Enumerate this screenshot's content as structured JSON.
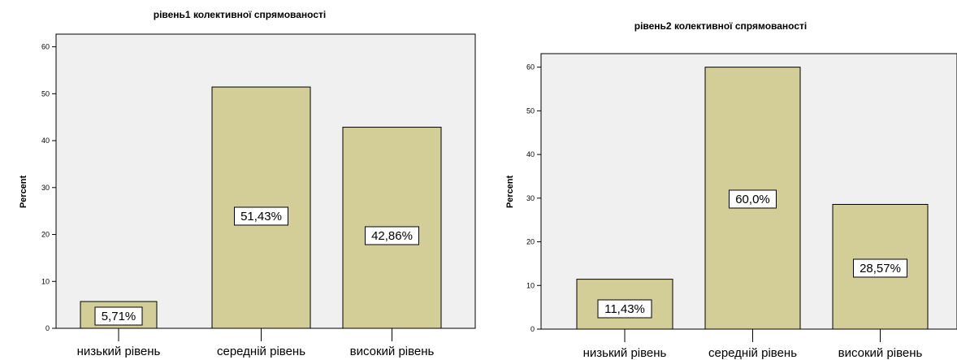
{
  "colors": {
    "plot_bg": "#f0f0f0",
    "bar_fill": "#d3ce98",
    "border": "#000000",
    "label_bg": "#ffffff"
  },
  "chart_data": [
    {
      "type": "bar",
      "title": "рівень1 колективної спрямованості",
      "ylabel": "Percent",
      "categories": [
        "низький рівень",
        "середній рівень",
        "високий рівень"
      ],
      "values": [
        5.71,
        51.43,
        42.86
      ],
      "data_labels": [
        "5,71%",
        "51,43%",
        "42,86%"
      ],
      "yticks": [
        0,
        10,
        20,
        30,
        40,
        50,
        60
      ],
      "ylim": [
        0,
        62.7
      ],
      "grid": false
    },
    {
      "type": "bar",
      "title": "рівень2 колективної спрямованості",
      "ylabel": "Percent",
      "categories": [
        "низький рівень",
        "середній рівень",
        "високий рівень"
      ],
      "values": [
        11.43,
        60.0,
        28.57
      ],
      "data_labels": [
        "11,43%",
        "60,0%",
        "28,57%"
      ],
      "yticks": [
        0,
        10,
        20,
        30,
        40,
        50,
        60
      ],
      "ylim": [
        0,
        63.1
      ],
      "grid": false
    }
  ]
}
